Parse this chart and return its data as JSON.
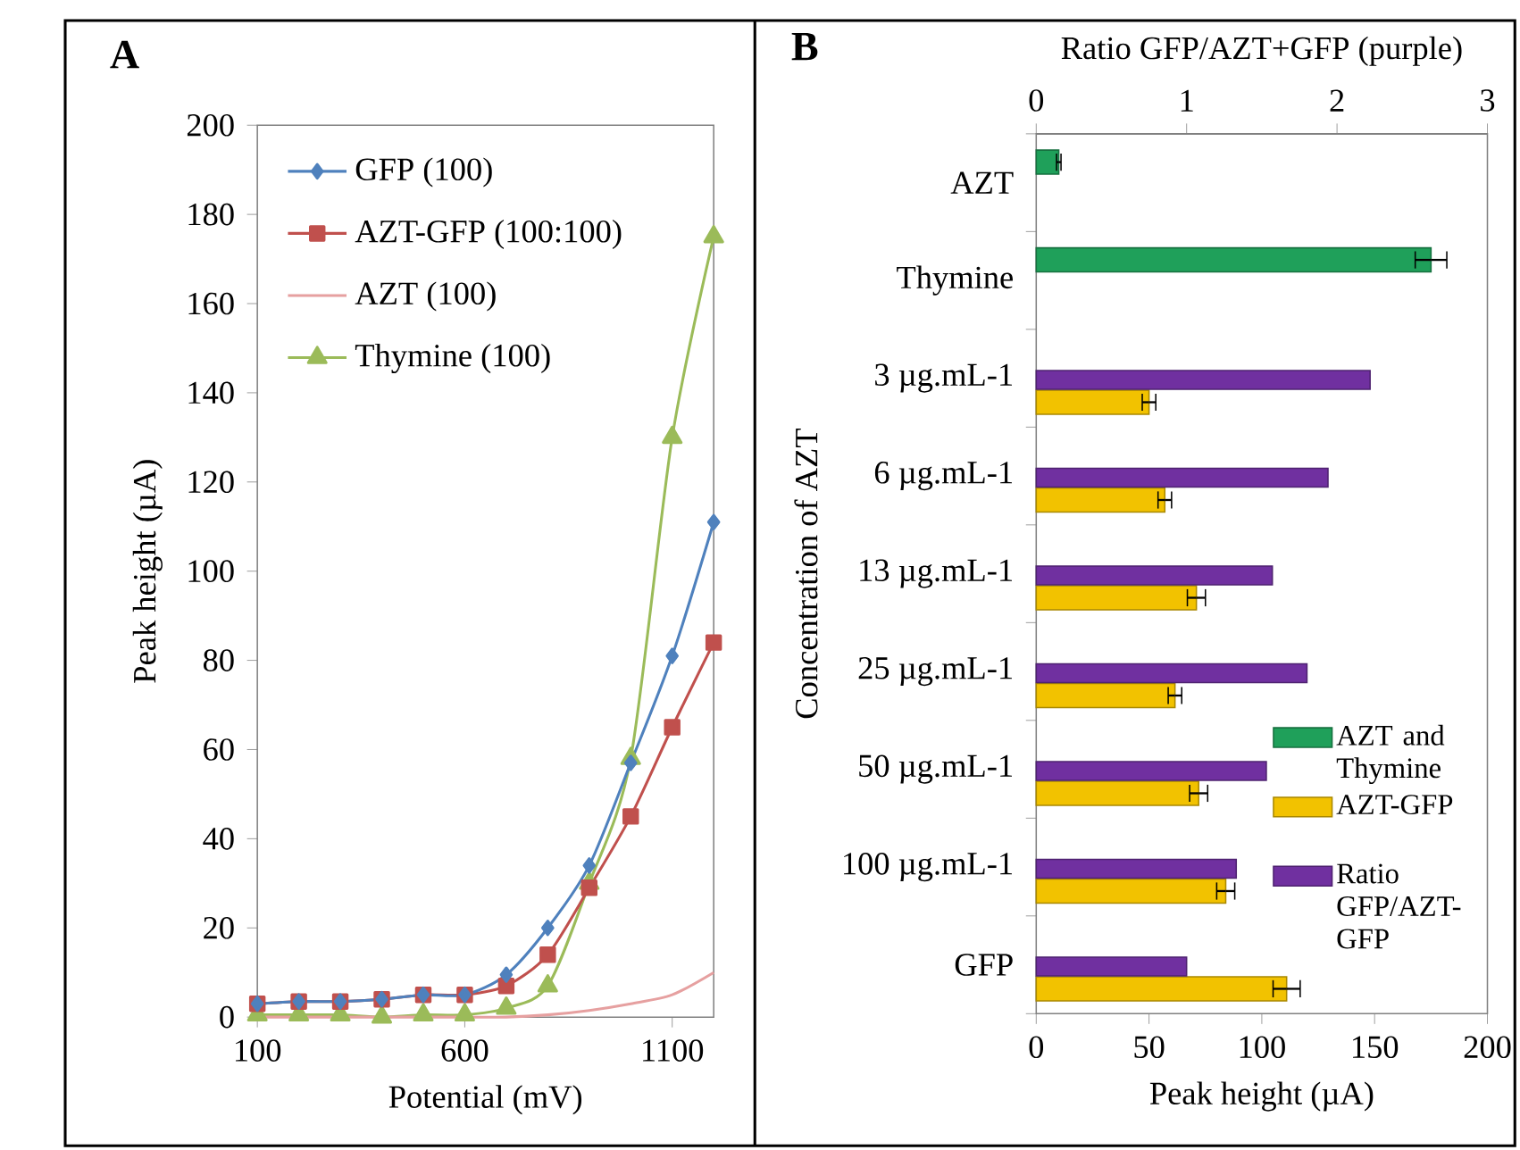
{
  "chart_data": [
    {
      "type": "line",
      "title": "A",
      "xlabel": "Potential (mV)",
      "ylabel": "Peak height (µA)",
      "x": [
        100,
        200,
        300,
        400,
        500,
        600,
        700,
        800,
        900,
        1000,
        1100,
        1200
      ],
      "series": [
        {
          "name": "GFP (100)",
          "color": "#4f81bd",
          "marker": "diamond",
          "values": [
            3,
            3.5,
            3.5,
            4,
            5,
            5,
            9.5,
            20,
            34,
            57,
            81,
            111
          ]
        },
        {
          "name": "AZT-GFP (100:100)",
          "color": "#c0504d",
          "marker": "square",
          "values": [
            3,
            3.5,
            3.5,
            4,
            5,
            5,
            7,
            14,
            29,
            45,
            65,
            84
          ]
        },
        {
          "name": "AZT (100)",
          "color": "#e6a0a0",
          "marker": "none",
          "values": [
            0,
            0,
            0,
            0,
            0,
            0,
            0,
            0.5,
            1.5,
            3,
            5,
            10
          ]
        },
        {
          "name": "Thymine (100)",
          "color": "#9bbb59",
          "marker": "triangle",
          "values": [
            0.5,
            0.5,
            0.5,
            0,
            0.5,
            0.5,
            2,
            7,
            30,
            58,
            130,
            175
          ]
        }
      ],
      "xlim": [
        100,
        1200
      ],
      "xticks": [
        100,
        600,
        1100
      ],
      "ylim": [
        0,
        200
      ],
      "yticks": [
        0,
        20,
        40,
        60,
        80,
        100,
        120,
        140,
        160,
        180,
        200
      ],
      "legend": "top left",
      "grid": false
    },
    {
      "type": "bar",
      "orientation": "horizontal",
      "title": "B",
      "xlabel": "Peak height (µA)",
      "x2label": "Ratio GFP/AZT+GFP (purple)",
      "ylabel": "Concentration of AZT",
      "categories": [
        "AZT",
        "Thymine",
        "3 µg.mL-1",
        "6 µg.mL-1",
        "13 µg.mL-1",
        "25 µg.mL-1",
        "50 µg.mL-1",
        "100 µg.mL-1",
        "GFP"
      ],
      "series": [
        {
          "name": "AZT and Thymine",
          "color": "#1fa05a",
          "values": [
            10,
            175,
            null,
            null,
            null,
            null,
            null,
            null,
            null
          ],
          "errors": [
            1,
            7,
            null,
            null,
            null,
            null,
            null,
            null,
            null
          ]
        },
        {
          "name": "AZT-GFP",
          "color": "#f2c200",
          "values": [
            null,
            null,
            50,
            57,
            71,
            61.5,
            72,
            84,
            111
          ],
          "errors": [
            null,
            null,
            3,
            3,
            4,
            3,
            4,
            4,
            6
          ]
        },
        {
          "name": "Ratio GFP/AZT-GFP",
          "color": "#7030a0",
          "axis": "x2",
          "values": [
            null,
            null,
            2.22,
            1.94,
            1.57,
            1.8,
            1.53,
            1.33,
            1.0
          ]
        }
      ],
      "xlim": [
        0,
        200
      ],
      "xticks": [
        0,
        50,
        100,
        150,
        200
      ],
      "x2lim": [
        0,
        3
      ],
      "x2ticks": [
        0,
        1,
        2,
        3
      ],
      "legend": "right",
      "grid": false
    }
  ]
}
